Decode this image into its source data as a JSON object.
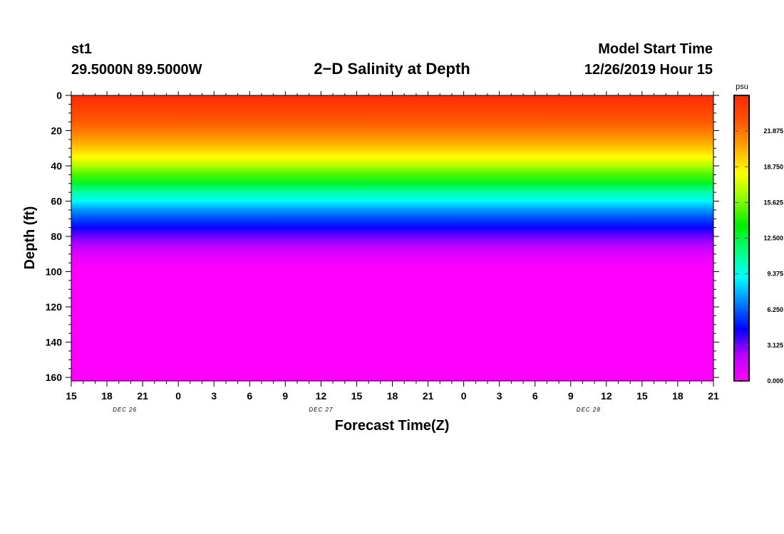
{
  "header": {
    "station": "st1",
    "location": "29.5000N 89.5000W",
    "title": "2−D Salinity at Depth",
    "start_label": "Model Start Time",
    "start_value": "12/26/2019 Hour 15"
  },
  "chart_data": {
    "type": "heatmap",
    "title": "2−D Salinity at Depth",
    "xlabel": "Forecast Time(Z)",
    "ylabel": "Depth (ft)",
    "x_ticks": [
      "15",
      "18",
      "21",
      "0",
      "3",
      "6",
      "9",
      "12",
      "15",
      "18",
      "21",
      "0",
      "3",
      "6",
      "9",
      "12",
      "15",
      "18",
      "21"
    ],
    "x_range_hours": [
      0,
      54
    ],
    "date_labels": [
      {
        "label": "DEC 26",
        "hour": 4.5
      },
      {
        "label": "DEC 27",
        "hour": 21
      },
      {
        "label": "DEC 28",
        "hour": 43.5
      }
    ],
    "y_ticks": [
      0,
      20,
      40,
      60,
      80,
      100,
      120,
      140,
      160
    ],
    "ylim": [
      162,
      0
    ],
    "y_inverted": true,
    "colorbar": {
      "unit": "psu",
      "min": 0,
      "max": 25,
      "ticks": [
        0.0,
        3.125,
        6.25,
        9.375,
        12.5,
        15.625,
        18.75,
        21.875
      ],
      "tick_labels": [
        "0.000",
        "3.125",
        "6.250",
        "9.375",
        "12.500",
        "15.625",
        "18.750",
        "21.875"
      ],
      "colors": [
        "#ff00ff",
        "#bb00ff",
        "#0000ff",
        "#0080ff",
        "#00ffff",
        "#00ff80",
        "#00ee00",
        "#88ff00",
        "#ffff00",
        "#ffaa00",
        "#ff5500",
        "#ff2a00"
      ]
    },
    "salinity_profile": {
      "depth_ft": [
        0,
        5,
        10,
        15,
        20,
        25,
        30,
        35,
        40,
        45,
        50,
        55,
        60,
        65,
        70,
        75,
        80,
        85,
        90,
        95,
        100,
        162
      ],
      "psu": [
        25.0,
        24.2,
        23.4,
        22.6,
        21.8,
        20.8,
        19.6,
        18.2,
        16.6,
        14.8,
        12.8,
        10.6,
        9.0,
        7.2,
        5.8,
        4.4,
        3.2,
        2.2,
        1.0,
        0.3,
        0.0,
        0.0
      ]
    }
  }
}
